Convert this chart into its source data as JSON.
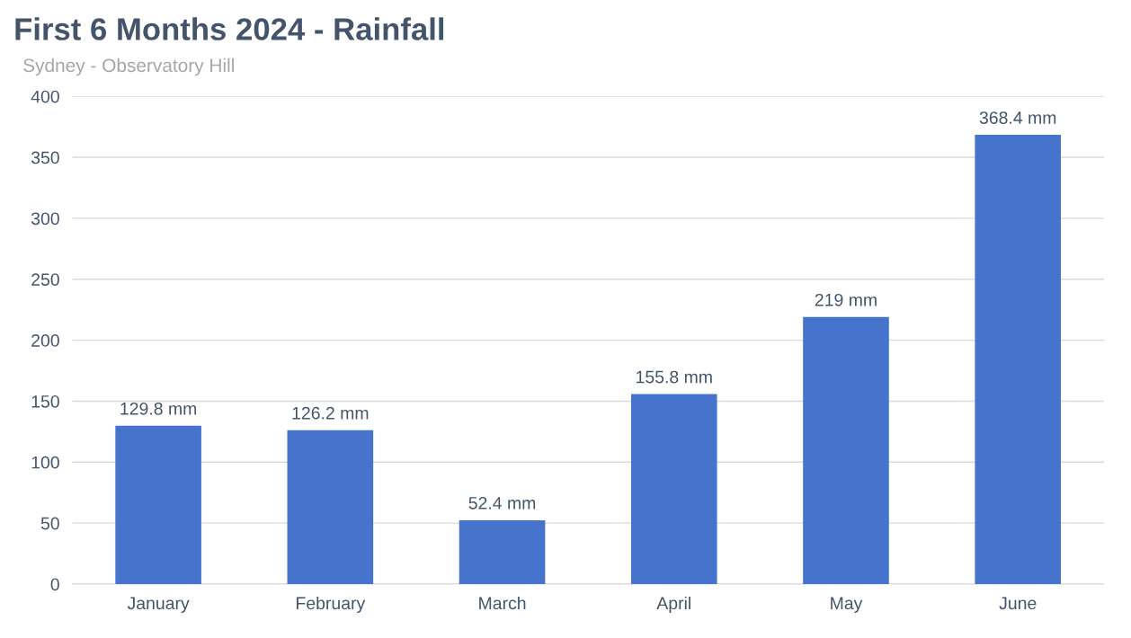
{
  "chart_data": {
    "type": "bar",
    "title": "First 6 Months 2024 - Rainfall",
    "subtitle": "Sydney - Observatory Hill",
    "categories": [
      "January",
      "February",
      "March",
      "April",
      "May",
      "June"
    ],
    "values": [
      129.8,
      126.2,
      52.4,
      155.8,
      219,
      368.4
    ],
    "value_labels": [
      "129.8 mm",
      "126.2 mm",
      "52.4 mm",
      "155.8 mm",
      "219 mm",
      "368.4 mm"
    ],
    "color": "#4674cc",
    "ylim": [
      0,
      400
    ],
    "yticks": [
      0,
      50,
      100,
      150,
      200,
      250,
      300,
      350,
      400
    ],
    "grid": "y",
    "legend": false
  }
}
